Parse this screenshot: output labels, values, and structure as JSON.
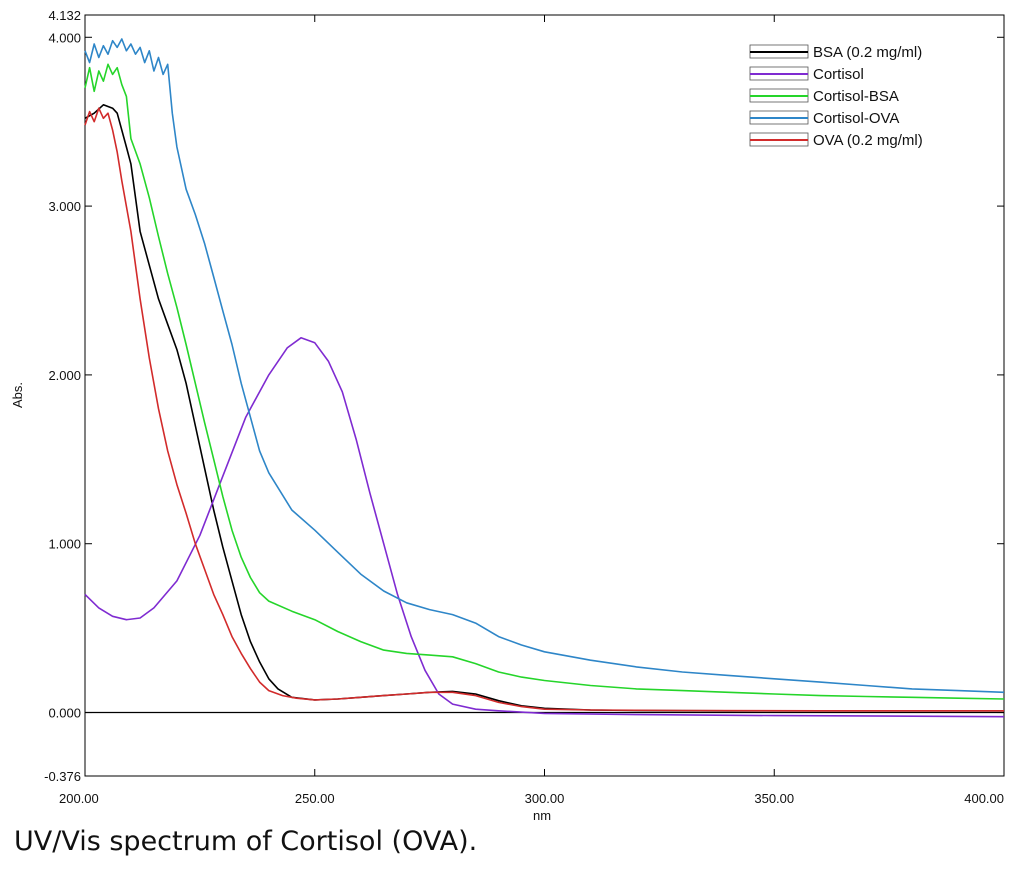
{
  "caption": "UV/Vis spectrum of Cortisol (OVA).",
  "chart_data": {
    "type": "line",
    "xlabel": "nm",
    "ylabel": "Abs.",
    "xlim": [
      200,
      400
    ],
    "ylim": [
      -0.376,
      4.132
    ],
    "x_ticks": [
      200,
      250,
      300,
      350,
      400
    ],
    "x_tick_labels": [
      "200.00",
      "250.00",
      "300.00",
      "350.00",
      "400.00"
    ],
    "y_ticks": [
      -0.376,
      0,
      1,
      2,
      3,
      4,
      4.132
    ],
    "y_tick_labels": [
      "-0.376",
      "0.000",
      "1.000",
      "2.000",
      "3.000",
      "4.000",
      "4.132"
    ],
    "legend_position": "top-right",
    "grid": false,
    "baseline": 0,
    "series": [
      {
        "name": "BSA (0.2 mg/ml)",
        "color": "#000000",
        "points": [
          [
            200,
            3.52
          ],
          [
            202,
            3.55
          ],
          [
            204,
            3.6
          ],
          [
            206,
            3.58
          ],
          [
            207,
            3.55
          ],
          [
            209,
            3.35
          ],
          [
            210,
            3.25
          ],
          [
            212,
            2.85
          ],
          [
            214,
            2.65
          ],
          [
            216,
            2.45
          ],
          [
            218,
            2.3
          ],
          [
            220,
            2.15
          ],
          [
            222,
            1.95
          ],
          [
            224,
            1.7
          ],
          [
            226,
            1.45
          ],
          [
            228,
            1.2
          ],
          [
            230,
            0.98
          ],
          [
            232,
            0.78
          ],
          [
            234,
            0.58
          ],
          [
            236,
            0.42
          ],
          [
            238,
            0.3
          ],
          [
            240,
            0.2
          ],
          [
            242,
            0.14
          ],
          [
            245,
            0.09
          ],
          [
            250,
            0.075
          ],
          [
            255,
            0.08
          ],
          [
            260,
            0.09
          ],
          [
            265,
            0.1
          ],
          [
            270,
            0.11
          ],
          [
            275,
            0.12
          ],
          [
            280,
            0.125
          ],
          [
            285,
            0.11
          ],
          [
            290,
            0.07
          ],
          [
            295,
            0.04
          ],
          [
            300,
            0.025
          ],
          [
            310,
            0.015
          ],
          [
            320,
            0.012
          ],
          [
            340,
            0.01
          ],
          [
            360,
            0.01
          ],
          [
            380,
            0.01
          ],
          [
            400,
            0.01
          ]
        ]
      },
      {
        "name": "Cortisol",
        "color": "#7f2bd1",
        "points": [
          [
            200,
            0.7
          ],
          [
            203,
            0.62
          ],
          [
            206,
            0.57
          ],
          [
            209,
            0.55
          ],
          [
            212,
            0.56
          ],
          [
            215,
            0.62
          ],
          [
            220,
            0.78
          ],
          [
            225,
            1.05
          ],
          [
            230,
            1.4
          ],
          [
            235,
            1.75
          ],
          [
            240,
            2.0
          ],
          [
            244,
            2.16
          ],
          [
            247,
            2.22
          ],
          [
            250,
            2.19
          ],
          [
            253,
            2.08
          ],
          [
            256,
            1.9
          ],
          [
            259,
            1.62
          ],
          [
            262,
            1.3
          ],
          [
            265,
            1.0
          ],
          [
            268,
            0.7
          ],
          [
            271,
            0.45
          ],
          [
            274,
            0.25
          ],
          [
            277,
            0.11
          ],
          [
            280,
            0.05
          ],
          [
            285,
            0.02
          ],
          [
            290,
            0.01
          ],
          [
            300,
            -0.005
          ],
          [
            320,
            -0.012
          ],
          [
            350,
            -0.018
          ],
          [
            380,
            -0.022
          ],
          [
            400,
            -0.025
          ]
        ]
      },
      {
        "name": "Cortisol-BSA",
        "color": "#25d52a",
        "points": [
          [
            200,
            3.7
          ],
          [
            201,
            3.82
          ],
          [
            202,
            3.68
          ],
          [
            203,
            3.8
          ],
          [
            204,
            3.74
          ],
          [
            205,
            3.84
          ],
          [
            206,
            3.78
          ],
          [
            207,
            3.82
          ],
          [
            208,
            3.72
          ],
          [
            209,
            3.65
          ],
          [
            210,
            3.4
          ],
          [
            212,
            3.25
          ],
          [
            214,
            3.05
          ],
          [
            216,
            2.82
          ],
          [
            218,
            2.6
          ],
          [
            220,
            2.4
          ],
          [
            222,
            2.18
          ],
          [
            224,
            1.95
          ],
          [
            226,
            1.72
          ],
          [
            228,
            1.5
          ],
          [
            230,
            1.28
          ],
          [
            232,
            1.08
          ],
          [
            234,
            0.92
          ],
          [
            236,
            0.8
          ],
          [
            238,
            0.71
          ],
          [
            240,
            0.66
          ],
          [
            245,
            0.6
          ],
          [
            250,
            0.55
          ],
          [
            255,
            0.48
          ],
          [
            260,
            0.42
          ],
          [
            265,
            0.37
          ],
          [
            270,
            0.35
          ],
          [
            275,
            0.34
          ],
          [
            280,
            0.33
          ],
          [
            285,
            0.29
          ],
          [
            290,
            0.24
          ],
          [
            295,
            0.21
          ],
          [
            300,
            0.19
          ],
          [
            310,
            0.16
          ],
          [
            320,
            0.14
          ],
          [
            330,
            0.13
          ],
          [
            340,
            0.12
          ],
          [
            350,
            0.11
          ],
          [
            360,
            0.1
          ],
          [
            370,
            0.095
          ],
          [
            380,
            0.09
          ],
          [
            390,
            0.085
          ],
          [
            400,
            0.08
          ]
        ]
      },
      {
        "name": "Cortisol-OVA",
        "color": "#2e86c8",
        "points": [
          [
            200,
            3.92
          ],
          [
            201,
            3.85
          ],
          [
            202,
            3.96
          ],
          [
            203,
            3.88
          ],
          [
            204,
            3.95
          ],
          [
            205,
            3.9
          ],
          [
            206,
            3.98
          ],
          [
            207,
            3.94
          ],
          [
            208,
            3.99
          ],
          [
            209,
            3.92
          ],
          [
            210,
            3.96
          ],
          [
            211,
            3.9
          ],
          [
            212,
            3.94
          ],
          [
            213,
            3.85
          ],
          [
            214,
            3.92
          ],
          [
            215,
            3.8
          ],
          [
            216,
            3.88
          ],
          [
            217,
            3.78
          ],
          [
            218,
            3.84
          ],
          [
            219,
            3.55
          ],
          [
            220,
            3.35
          ],
          [
            222,
            3.1
          ],
          [
            224,
            2.95
          ],
          [
            226,
            2.78
          ],
          [
            228,
            2.58
          ],
          [
            230,
            2.38
          ],
          [
            232,
            2.18
          ],
          [
            234,
            1.95
          ],
          [
            236,
            1.75
          ],
          [
            238,
            1.55
          ],
          [
            240,
            1.42
          ],
          [
            245,
            1.2
          ],
          [
            250,
            1.08
          ],
          [
            255,
            0.95
          ],
          [
            260,
            0.82
          ],
          [
            265,
            0.72
          ],
          [
            270,
            0.65
          ],
          [
            275,
            0.61
          ],
          [
            280,
            0.58
          ],
          [
            285,
            0.53
          ],
          [
            290,
            0.45
          ],
          [
            295,
            0.4
          ],
          [
            300,
            0.36
          ],
          [
            310,
            0.31
          ],
          [
            320,
            0.27
          ],
          [
            330,
            0.24
          ],
          [
            340,
            0.22
          ],
          [
            350,
            0.2
          ],
          [
            360,
            0.18
          ],
          [
            370,
            0.16
          ],
          [
            380,
            0.14
          ],
          [
            390,
            0.13
          ],
          [
            400,
            0.12
          ]
        ]
      },
      {
        "name": "OVA (0.2 mg/ml)",
        "color": "#d22b2b",
        "points": [
          [
            200,
            3.48
          ],
          [
            201,
            3.56
          ],
          [
            202,
            3.5
          ],
          [
            203,
            3.58
          ],
          [
            204,
            3.52
          ],
          [
            205,
            3.55
          ],
          [
            206,
            3.45
          ],
          [
            207,
            3.32
          ],
          [
            208,
            3.15
          ],
          [
            210,
            2.85
          ],
          [
            212,
            2.45
          ],
          [
            214,
            2.1
          ],
          [
            216,
            1.8
          ],
          [
            218,
            1.55
          ],
          [
            220,
            1.35
          ],
          [
            222,
            1.18
          ],
          [
            224,
            1.0
          ],
          [
            226,
            0.85
          ],
          [
            228,
            0.7
          ],
          [
            230,
            0.58
          ],
          [
            232,
            0.45
          ],
          [
            234,
            0.35
          ],
          [
            236,
            0.26
          ],
          [
            238,
            0.18
          ],
          [
            240,
            0.13
          ],
          [
            243,
            0.1
          ],
          [
            246,
            0.085
          ],
          [
            250,
            0.075
          ],
          [
            255,
            0.08
          ],
          [
            260,
            0.09
          ],
          [
            265,
            0.1
          ],
          [
            270,
            0.11
          ],
          [
            275,
            0.12
          ],
          [
            280,
            0.12
          ],
          [
            285,
            0.1
          ],
          [
            290,
            0.06
          ],
          [
            295,
            0.035
          ],
          [
            300,
            0.02
          ],
          [
            310,
            0.015
          ],
          [
            330,
            0.012
          ],
          [
            360,
            0.01
          ],
          [
            400,
            0.01
          ]
        ]
      }
    ]
  }
}
